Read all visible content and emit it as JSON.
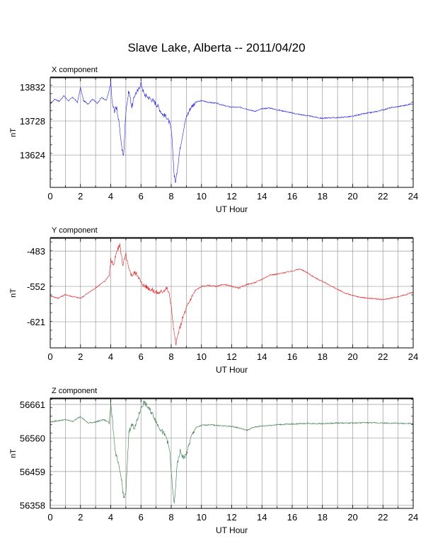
{
  "title": "Slave Lake, Alberta -- 2011/04/20",
  "chart_data": [
    {
      "type": "line",
      "panel_label": "X component",
      "xlabel": "UT Hour",
      "ylabel": "nT",
      "xlim": [
        0,
        24
      ],
      "ylim": [
        13525,
        13860
      ],
      "x_ticks": [
        0,
        2,
        4,
        6,
        8,
        10,
        12,
        14,
        16,
        18,
        20,
        22,
        24
      ],
      "y_ticks": [
        13624,
        13728,
        13832
      ],
      "color": "#2222dd",
      "grid": true,
      "x": [
        0,
        0.3,
        0.6,
        0.9,
        1.2,
        1.5,
        1.8,
        2.0,
        2.2,
        2.5,
        2.8,
        3.1,
        3.4,
        3.7,
        3.9,
        4.0,
        4.1,
        4.25,
        4.4,
        4.6,
        4.75,
        4.85,
        5.0,
        5.2,
        5.4,
        5.6,
        5.8,
        6.0,
        6.2,
        6.5,
        6.8,
        7.1,
        7.4,
        7.7,
        7.9,
        8.0,
        8.1,
        8.2,
        8.3,
        8.4,
        8.6,
        8.8,
        9.0,
        9.3,
        9.6,
        10.0,
        10.5,
        11.0,
        11.5,
        12.0,
        12.5,
        13.0,
        13.3,
        13.6,
        14.0,
        14.5,
        15.0,
        15.5,
        16.0,
        16.5,
        17.0,
        17.5,
        18.0,
        18.5,
        19.0,
        19.5,
        20.0,
        20.5,
        21.0,
        21.5,
        22.0,
        22.5,
        23.0,
        23.5,
        24.0
      ],
      "y": [
        13780,
        13795,
        13788,
        13805,
        13790,
        13800,
        13785,
        13830,
        13790,
        13780,
        13795,
        13782,
        13800,
        13790,
        13820,
        13850,
        13780,
        13760,
        13770,
        13700,
        13640,
        13620,
        13760,
        13820,
        13770,
        13810,
        13820,
        13845,
        13810,
        13800,
        13790,
        13775,
        13750,
        13740,
        13720,
        13700,
        13640,
        13560,
        13540,
        13580,
        13650,
        13700,
        13740,
        13770,
        13785,
        13790,
        13785,
        13782,
        13775,
        13770,
        13770,
        13765,
        13760,
        13758,
        13765,
        13768,
        13762,
        13758,
        13752,
        13748,
        13744,
        13740,
        13736,
        13738,
        13738,
        13740,
        13742,
        13748,
        13752,
        13756,
        13762,
        13768,
        13772,
        13776,
        13782
      ]
    },
    {
      "type": "line",
      "panel_label": "Y component",
      "xlabel": "UT Hour",
      "ylabel": "nT",
      "xlim": [
        0,
        24
      ],
      "ylim": [
        -672,
        -458
      ],
      "x_ticks": [
        0,
        2,
        4,
        6,
        8,
        10,
        12,
        14,
        16,
        18,
        20,
        22,
        24
      ],
      "y_ticks": [
        -483,
        -552,
        -621
      ],
      "color": "#dd2222",
      "grid": true,
      "x": [
        0,
        0.5,
        1.0,
        1.5,
        2.0,
        2.5,
        3.0,
        3.3,
        3.6,
        3.9,
        4.0,
        4.2,
        4.4,
        4.6,
        4.8,
        5.0,
        5.2,
        5.4,
        5.6,
        5.8,
        6.0,
        6.2,
        6.5,
        6.8,
        7.1,
        7.4,
        7.7,
        7.9,
        8.0,
        8.1,
        8.2,
        8.3,
        8.5,
        8.8,
        9.0,
        9.3,
        9.6,
        10.0,
        10.5,
        11.0,
        11.5,
        12.0,
        12.5,
        13.0,
        13.5,
        14.0,
        14.5,
        15.0,
        15.5,
        16.0,
        16.5,
        17.0,
        17.5,
        18.0,
        18.5,
        19.0,
        19.5,
        20.0,
        20.5,
        21.0,
        21.5,
        22.0,
        22.5,
        23.0,
        23.5,
        24.0
      ],
      "y": [
        -570,
        -575,
        -568,
        -572,
        -575,
        -565,
        -555,
        -548,
        -542,
        -530,
        -500,
        -510,
        -485,
        -470,
        -510,
        -490,
        -520,
        -530,
        -525,
        -530,
        -545,
        -550,
        -555,
        -560,
        -565,
        -562,
        -555,
        -570,
        -590,
        -620,
        -645,
        -665,
        -640,
        -610,
        -595,
        -575,
        -560,
        -552,
        -550,
        -552,
        -548,
        -552,
        -555,
        -548,
        -545,
        -538,
        -530,
        -528,
        -525,
        -522,
        -518,
        -525,
        -535,
        -542,
        -550,
        -558,
        -565,
        -570,
        -573,
        -575,
        -576,
        -578,
        -575,
        -572,
        -568,
        -563
      ]
    },
    {
      "type": "line",
      "panel_label": "Z component",
      "xlabel": "UT Hour",
      "ylabel": "nT",
      "xlim": [
        0,
        24
      ],
      "ylim": [
        56348,
        56678
      ],
      "x_ticks": [
        0,
        2,
        4,
        6,
        8,
        10,
        12,
        14,
        16,
        18,
        20,
        22,
        24
      ],
      "y_ticks": [
        56358,
        56459,
        56560,
        56661
      ],
      "color": "#337744",
      "grid": true,
      "x": [
        0,
        0.5,
        1.0,
        1.5,
        2.0,
        2.5,
        3.0,
        3.5,
        3.9,
        4.0,
        4.1,
        4.3,
        4.5,
        4.7,
        4.85,
        5.0,
        5.2,
        5.4,
        5.6,
        5.8,
        6.0,
        6.2,
        6.5,
        6.8,
        7.1,
        7.4,
        7.7,
        7.9,
        8.0,
        8.1,
        8.2,
        8.4,
        8.6,
        8.8,
        9.0,
        9.3,
        9.6,
        10.0,
        10.5,
        11.0,
        11.5,
        12.0,
        12.5,
        13.0,
        13.5,
        14.0,
        14.5,
        15.0,
        16.0,
        17.0,
        18.0,
        19.0,
        20.0,
        21.0,
        22.0,
        23.0,
        24.0
      ],
      "y": [
        56608,
        56612,
        56615,
        56610,
        56625,
        56605,
        56608,
        56615,
        56608,
        56665,
        56620,
        56520,
        56480,
        56440,
        56380,
        56390,
        56580,
        56600,
        56590,
        56620,
        56650,
        56668,
        56650,
        56630,
        56600,
        56580,
        56560,
        56520,
        56460,
        56400,
        56360,
        56480,
        56520,
        56500,
        56510,
        56560,
        56590,
        56598,
        56600,
        56598,
        56596,
        56595,
        56590,
        56583,
        56593,
        56596,
        56598,
        56600,
        56602,
        56604,
        56603,
        56605,
        56605,
        56606,
        56605,
        56604,
        56603
      ]
    }
  ]
}
